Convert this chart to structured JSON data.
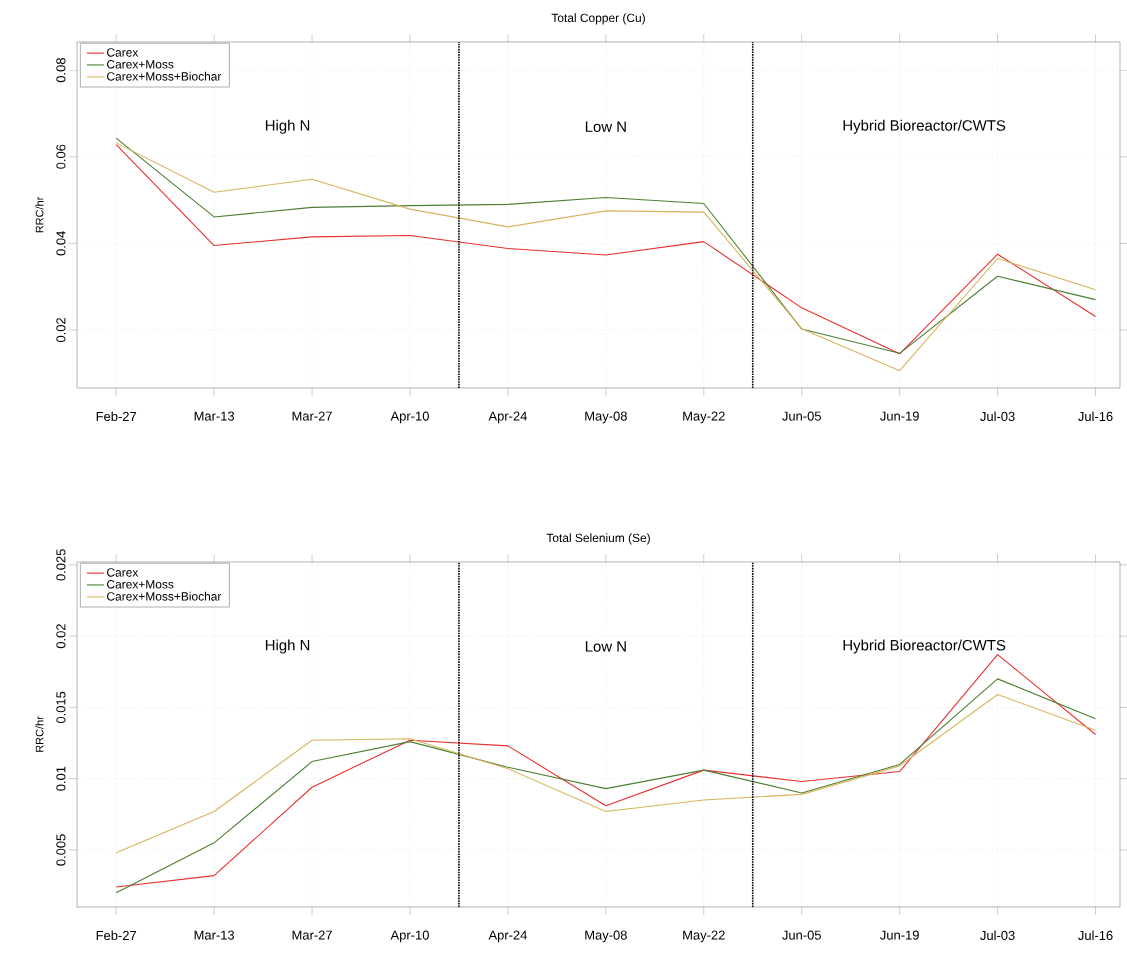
{
  "chart_data": [
    {
      "type": "line",
      "title": "Total Copper (Cu)",
      "ylabel": "RRC/hr",
      "categories": [
        "Feb-27",
        "Mar-13",
        "Mar-27",
        "Apr-10",
        "Apr-24",
        "May-08",
        "May-22",
        "Jun-05",
        "Jun-19",
        "Jul-03",
        "Jul-16"
      ],
      "series": [
        {
          "name": "Carex",
          "color": "#e8302e",
          "values": [
            0.0628,
            0.0395,
            0.0415,
            0.0418,
            0.0388,
            0.0373,
            0.0404,
            0.0251,
            0.0145,
            0.0375,
            0.0231
          ]
        },
        {
          "name": "Carex+Moss",
          "color": "#4b7f32",
          "values": [
            0.0643,
            0.0461,
            0.0483,
            0.0487,
            0.049,
            0.0506,
            0.0492,
            0.0202,
            0.0146,
            0.0324,
            0.027
          ]
        },
        {
          "name": "Carex+Moss+Biochar",
          "color": "#d8b45c",
          "values": [
            0.0632,
            0.0518,
            0.0548,
            0.0479,
            0.0438,
            0.0475,
            0.0472,
            0.0203,
            0.0106,
            0.0365,
            0.0293
          ]
        }
      ],
      "ylim": [
        0.0066,
        0.0865
      ],
      "yticks": [
        0.02,
        0.04,
        0.06,
        0.08
      ],
      "annotations": [
        "High N",
        "Low N",
        "Hybrid Bioreactor/CWTS"
      ],
      "grid": true,
      "legend": "top left",
      "marker": "none",
      "line_style": "solid"
    },
    {
      "type": "line",
      "title": "Total Selenium (Se)",
      "ylabel": "RRC/hr",
      "categories": [
        "Feb-27",
        "Mar-13",
        "Mar-27",
        "Apr-10",
        "Apr-24",
        "May-08",
        "May-22",
        "Jun-05",
        "Jun-19",
        "Jul-03",
        "Jul-16"
      ],
      "series": [
        {
          "name": "Carex",
          "color": "#e8302e",
          "values": [
            0.0024,
            0.0032,
            0.0094,
            0.0127,
            0.0123,
            0.0081,
            0.0106,
            0.0098,
            0.0105,
            0.0187,
            0.0131
          ]
        },
        {
          "name": "Carex+Moss",
          "color": "#4b7f32",
          "values": [
            0.002,
            0.0055,
            0.0112,
            0.0126,
            0.0108,
            0.0093,
            0.0106,
            0.009,
            0.011,
            0.017,
            0.0142
          ]
        },
        {
          "name": "Carex+Moss+Biochar",
          "color": "#d8b45c",
          "values": [
            0.0048,
            0.0077,
            0.0127,
            0.0128,
            0.0107,
            0.0077,
            0.0085,
            0.0089,
            0.0109,
            0.0159,
            0.0134
          ]
        }
      ],
      "ylim": [
        0.001,
        0.0252
      ],
      "yticks": [
        0.005,
        0.01,
        0.015,
        0.02,
        0.025
      ],
      "annotations": [
        "High N",
        "Low N",
        "Hybrid Bioreactor/CWTS"
      ],
      "grid": true,
      "legend": "top left",
      "marker": "none",
      "line_style": "solid"
    }
  ]
}
